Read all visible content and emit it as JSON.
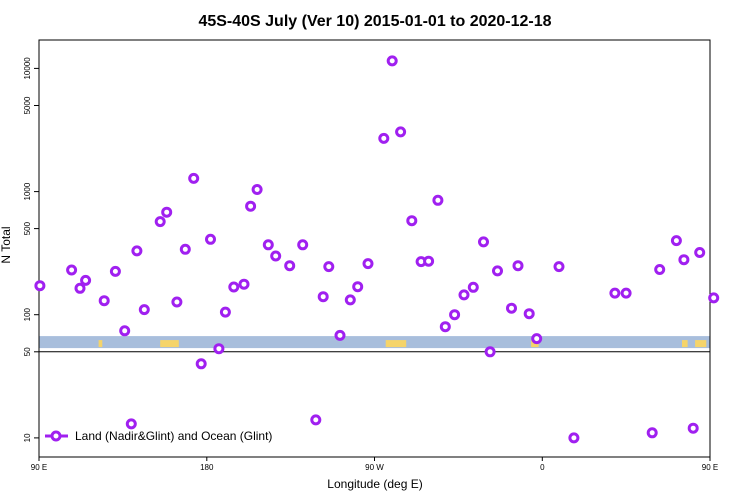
{
  "chart_data": {
    "type": "scatter",
    "title": "45S-40S July (Ver 10)   2015-01-01 to 2020-12-18",
    "xlabel": "Longitude (deg E)",
    "ylabel": "N Total",
    "y_scale": "log",
    "xlim": [
      90,
      450
    ],
    "ylim": [
      7,
      17000
    ],
    "x_ticks": [
      {
        "value": 90,
        "label": "90 E"
      },
      {
        "value": 180,
        "label": "180"
      },
      {
        "value": 270,
        "label": "90 W"
      },
      {
        "value": 360,
        "label": "0"
      },
      {
        "value": 450,
        "label": "90 E"
      },
      {
        "value": 540,
        "label": "180"
      }
    ],
    "y_ticks": [
      {
        "value": 10,
        "label": "10"
      },
      {
        "value": 50,
        "label": "50"
      },
      {
        "value": 100,
        "label": "100"
      },
      {
        "value": 500,
        "label": "500"
      },
      {
        "value": 1000,
        "label": "1000"
      },
      {
        "value": 5000,
        "label": "5000"
      },
      {
        "value": 10000,
        "label": "10000"
      }
    ],
    "legend": {
      "position": "bottom-left",
      "label": "Land (Nadir&Glint) and Ocean (Glint)"
    },
    "colors": {
      "points": "#a020f0",
      "band": "#a8bedc",
      "land": "#f5d46a"
    },
    "series": [
      {
        "name": "Land (Nadir&Glint) and Ocean (Glint)",
        "points": [
          [
            90.5,
            172
          ],
          [
            107.5,
            231
          ],
          [
            112,
            164
          ],
          [
            115,
            190
          ],
          [
            125,
            130
          ],
          [
            131,
            225
          ],
          [
            136,
            74
          ],
          [
            139.5,
            13
          ],
          [
            142.5,
            330
          ],
          [
            146.5,
            110
          ],
          [
            155,
            570
          ],
          [
            158.5,
            680
          ],
          [
            164,
            127
          ],
          [
            168.5,
            340
          ],
          [
            173,
            1280
          ],
          [
            177,
            40
          ],
          [
            182,
            410
          ],
          [
            186.5,
            53
          ],
          [
            190,
            105
          ],
          [
            194.5,
            168
          ],
          [
            200,
            177
          ],
          [
            203.5,
            760
          ],
          [
            207,
            1040
          ],
          [
            213,
            370
          ],
          [
            217,
            300
          ],
          [
            224.5,
            250
          ],
          [
            231.5,
            370
          ],
          [
            238.5,
            14
          ],
          [
            242.5,
            140
          ],
          [
            245.5,
            246
          ],
          [
            251.5,
            68
          ],
          [
            257,
            132
          ],
          [
            261,
            169
          ],
          [
            266.5,
            260
          ],
          [
            275,
            2700
          ],
          [
            279.5,
            11500
          ],
          [
            284,
            3050
          ],
          [
            290,
            580
          ],
          [
            295,
            270
          ],
          [
            299,
            272
          ],
          [
            304,
            850
          ],
          [
            308,
            80
          ],
          [
            313,
            100
          ],
          [
            318,
            145
          ],
          [
            323,
            167
          ],
          [
            328.5,
            390
          ],
          [
            332,
            50
          ],
          [
            336,
            227
          ],
          [
            343.5,
            113
          ],
          [
            347,
            250
          ],
          [
            353,
            102
          ],
          [
            357,
            64
          ],
          [
            377,
            10
          ],
          [
            369,
            246
          ],
          [
            399,
            150
          ],
          [
            405,
            150
          ],
          [
            419,
            11
          ],
          [
            423,
            233
          ],
          [
            432,
            400
          ],
          [
            436,
            280
          ],
          [
            441,
            12
          ],
          [
            444.5,
            320
          ],
          [
            452,
            137
          ]
        ]
      }
    ],
    "band_value": 60
  }
}
